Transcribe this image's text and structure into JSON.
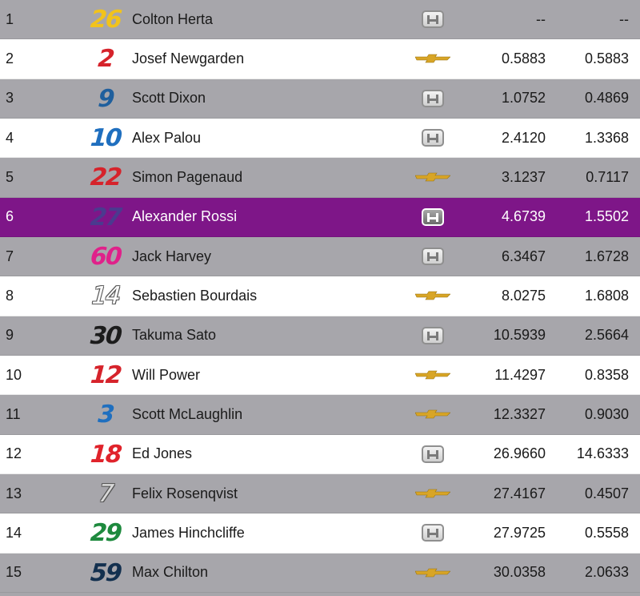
{
  "rows": [
    {
      "pos": "1",
      "number": "26",
      "number_color": "#f2c31b",
      "outline": false,
      "name": "Colton Herta",
      "maker": "honda",
      "interval": "--",
      "gap": "--"
    },
    {
      "pos": "2",
      "number": "2",
      "number_color": "#d6232b",
      "outline": false,
      "name": "Josef Newgarden",
      "maker": "chevrolet",
      "interval": "0.5883",
      "gap": "0.5883"
    },
    {
      "pos": "3",
      "number": "9",
      "number_color": "#1f5f9d",
      "outline": false,
      "name": "Scott Dixon",
      "maker": "honda",
      "interval": "1.0752",
      "gap": "0.4869"
    },
    {
      "pos": "4",
      "number": "10",
      "number_color": "#1f6fbf",
      "outline": false,
      "name": "Alex Palou",
      "maker": "honda",
      "interval": "2.4120",
      "gap": "1.3368"
    },
    {
      "pos": "5",
      "number": "22",
      "number_color": "#d6232b",
      "outline": false,
      "name": "Simon Pagenaud",
      "maker": "chevrolet",
      "interval": "3.1237",
      "gap": "0.7117"
    },
    {
      "pos": "6",
      "number": "27",
      "number_color": "#4b3a8f",
      "outline": false,
      "name": "Alexander Rossi",
      "maker": "honda",
      "interval": "4.6739",
      "gap": "1.5502"
    },
    {
      "pos": "7",
      "number": "60",
      "number_color": "#e0218a",
      "outline": false,
      "name": "Jack Harvey",
      "maker": "honda",
      "interval": "6.3467",
      "gap": "1.6728"
    },
    {
      "pos": "8",
      "number": "14",
      "number_color": "#ffffff",
      "outline": true,
      "name": "Sebastien Bourdais",
      "maker": "chevrolet",
      "interval": "8.0275",
      "gap": "1.6808"
    },
    {
      "pos": "9",
      "number": "30",
      "number_color": "#1c1c1c",
      "outline": false,
      "name": "Takuma Sato",
      "maker": "honda",
      "interval": "10.5939",
      "gap": "2.5664"
    },
    {
      "pos": "10",
      "number": "12",
      "number_color": "#d6232b",
      "outline": false,
      "name": "Will Power",
      "maker": "chevrolet",
      "interval": "11.4297",
      "gap": "0.8358"
    },
    {
      "pos": "11",
      "number": "3",
      "number_color": "#1f6fbf",
      "outline": false,
      "name": "Scott McLaughlin",
      "maker": "chevrolet",
      "interval": "12.3327",
      "gap": "0.9030"
    },
    {
      "pos": "12",
      "number": "18",
      "number_color": "#e0232b",
      "outline": false,
      "name": "Ed Jones",
      "maker": "honda",
      "interval": "26.9660",
      "gap": "14.6333"
    },
    {
      "pos": "13",
      "number": "7",
      "number_color": "#d9d9d9",
      "outline": true,
      "name": "Felix Rosenqvist",
      "maker": "chevrolet",
      "interval": "27.4167",
      "gap": "0.4507"
    },
    {
      "pos": "14",
      "number": "29",
      "number_color": "#1e8a3e",
      "outline": false,
      "name": "James Hinchcliffe",
      "maker": "honda",
      "interval": "27.9725",
      "gap": "0.5558"
    },
    {
      "pos": "15",
      "number": "59",
      "number_color": "#13304f",
      "outline": false,
      "name": "Max Chilton",
      "maker": "chevrolet",
      "interval": "30.0358",
      "gap": "2.0633"
    }
  ],
  "highlight_row": "6",
  "colors": {
    "grey_row": "#a7a6ab",
    "white_row": "#ffffff",
    "highlight": "#7e1688",
    "chevrolet_gold": "#d8a526"
  }
}
